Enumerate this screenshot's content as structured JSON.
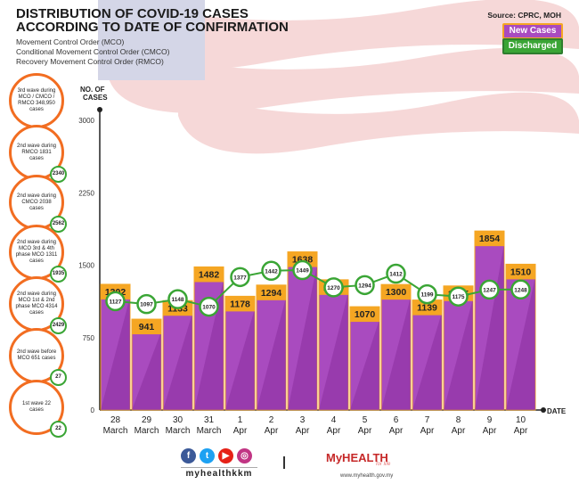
{
  "header": {
    "title_line1": "DISTRIBUTION OF COVID-19 CASES",
    "title_line2": "ACCORDING TO DATE OF CONFIRMATION",
    "sub1": "Movement Control Order (MCO)",
    "sub2": "Conditional Movement Control Order (CMCO)",
    "sub3": "Recovery Movement Control Order (RMCO)",
    "source": "Source: CPRC, MOH"
  },
  "legend": {
    "new_cases": "New Cases",
    "discharged": "Discharged"
  },
  "colors": {
    "bar": "#a94bbf",
    "bar_dark": "#8a2f9f",
    "label": "#f5a623",
    "line": "#3aa535",
    "circle": "#f26d21"
  },
  "waves": [
    {
      "text": "3rd wave during MCO / CMCO / RMCO 348,950 cases",
      "discharged": ""
    },
    {
      "text": "2nd wave during RMCO 1831 cases",
      "discharged": "2340"
    },
    {
      "text": "2nd wave during CMCO 2038 cases",
      "discharged": "2562"
    },
    {
      "text": "2nd wave during MCO 3rd & 4th phase MCO 1311 cases",
      "discharged": "1935"
    },
    {
      "text": "2nd wave during MCO 1st & 2nd phase MCO 4314 cases",
      "discharged": "2429"
    },
    {
      "text": "2nd wave before MCO 651 cases",
      "discharged": "27"
    },
    {
      "text": "1st wave 22 cases",
      "discharged": "22"
    }
  ],
  "chart_data": {
    "type": "bar",
    "ylabel": "NO. OF CASES",
    "xlabel": "DATE",
    "ylim": [
      0,
      3000
    ],
    "yticks": [
      0,
      750,
      1500,
      2250,
      3000
    ],
    "categories": [
      [
        "28",
        "March"
      ],
      [
        "29",
        "March"
      ],
      [
        "30",
        "March"
      ],
      [
        "31",
        "March"
      ],
      [
        "1",
        "Apr"
      ],
      [
        "2",
        "Apr"
      ],
      [
        "3",
        "Apr"
      ],
      [
        "4",
        "Apr"
      ],
      [
        "5",
        "Apr"
      ],
      [
        "6",
        "Apr"
      ],
      [
        "7",
        "Apr"
      ],
      [
        "8",
        "Apr"
      ],
      [
        "9",
        "Apr"
      ],
      [
        "10",
        "Apr"
      ]
    ],
    "series": [
      {
        "name": "New Cases",
        "type": "bar",
        "values": [
          1302,
          941,
          1133,
          1482,
          1178,
          1294,
          1638,
          1349,
          1070,
          1300,
          1139,
          1285,
          1854,
          1510
        ]
      },
      {
        "name": "Discharged",
        "type": "line",
        "values": [
          1127,
          1097,
          1148,
          1070,
          1377,
          1442,
          1449,
          1270,
          1294,
          1412,
          1199,
          1175,
          1247,
          1248
        ]
      }
    ]
  },
  "footer": {
    "handle": "myhealthkkm",
    "brand": "MyHEALTH",
    "tagline": "for life",
    "url": "www.myhealth.gov.my"
  }
}
